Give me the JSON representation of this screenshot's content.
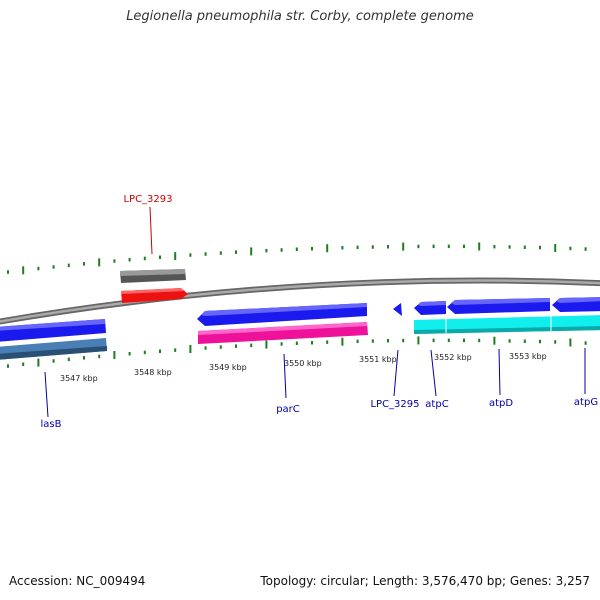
{
  "title": "Legionella pneumophila str. Corby, complete genome",
  "footer": {
    "accession": "Accession: NC_009494",
    "info": "Topology: circular; Length: 3,576,470 bp; Genes: 3,257"
  },
  "colors": {
    "backbone": "#8a8a8a",
    "tick": "#1e7d1e",
    "label_forward": "#cc0000",
    "label_reverse": "#0000aa",
    "cds_blue": "#1a1aee",
    "cds_steel": "#4a7fb5",
    "cds_gray": "#666666",
    "cds_red": "#ee1111",
    "cds_pink": "#ee1199",
    "cds_cyan": "#11eeee"
  },
  "tick_labels": [
    "3547 kbp",
    "3548 kbp",
    "3549 kbp",
    "3550 kbp",
    "3551 kbp",
    "3552 kbp",
    "3553 kbp"
  ],
  "genes": [
    {
      "name": "lasB",
      "strand": "reverse"
    },
    {
      "name": "LPC_3293",
      "strand": "forward"
    },
    {
      "name": "parC",
      "strand": "reverse"
    },
    {
      "name": "LPC_3295",
      "strand": "reverse"
    },
    {
      "name": "atpC",
      "strand": "reverse"
    },
    {
      "name": "atpD",
      "strand": "reverse"
    },
    {
      "name": "atpG",
      "strand": "reverse"
    }
  ]
}
